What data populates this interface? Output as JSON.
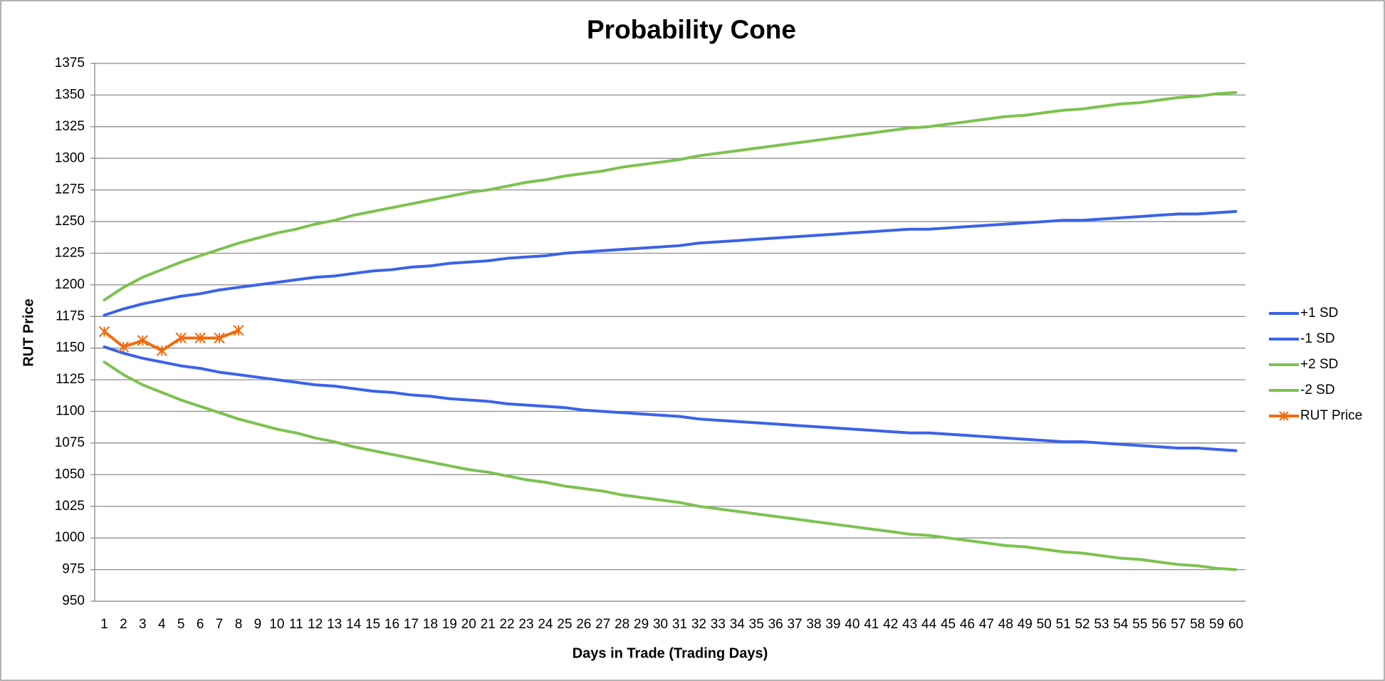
{
  "chart_data": {
    "type": "line",
    "title": "Probability Cone",
    "x_label": "Days in Trade (Trading Days)",
    "y_label": "RUT Price",
    "categories": [
      1,
      2,
      3,
      4,
      5,
      6,
      7,
      8,
      9,
      10,
      11,
      12,
      13,
      14,
      15,
      16,
      17,
      18,
      19,
      20,
      21,
      22,
      23,
      24,
      25,
      26,
      27,
      28,
      29,
      30,
      31,
      32,
      33,
      34,
      35,
      36,
      37,
      38,
      39,
      40,
      41,
      42,
      43,
      44,
      45,
      46,
      47,
      48,
      49,
      50,
      51,
      52,
      53,
      54,
      55,
      56,
      57,
      58,
      59,
      60
    ],
    "ylim": [
      950,
      1375
    ],
    "yticks": [
      950,
      975,
      1000,
      1025,
      1050,
      1075,
      1100,
      1125,
      1150,
      1175,
      1200,
      1225,
      1250,
      1275,
      1300,
      1325,
      1350,
      1375
    ],
    "grid": true,
    "legend": "right",
    "series": [
      {
        "name": "+1 SD",
        "color": "#3b63e8",
        "values": [
          1176,
          1181,
          1185,
          1188,
          1191,
          1193,
          1196,
          1198,
          1200,
          1202,
          1204,
          1206,
          1207,
          1209,
          1211,
          1212,
          1214,
          1215,
          1217,
          1218,
          1219,
          1221,
          1222,
          1223,
          1225,
          1226,
          1227,
          1228,
          1229,
          1230,
          1231,
          1233,
          1234,
          1235,
          1236,
          1237,
          1238,
          1239,
          1240,
          1241,
          1242,
          1243,
          1244,
          1244,
          1245,
          1246,
          1247,
          1248,
          1249,
          1250,
          1251,
          1251,
          1252,
          1253,
          1254,
          1255,
          1256,
          1256,
          1257,
          1258
        ]
      },
      {
        "name": "-1 SD",
        "color": "#3b63e8",
        "values": [
          1151,
          1146,
          1142,
          1139,
          1136,
          1134,
          1131,
          1129,
          1127,
          1125,
          1123,
          1121,
          1120,
          1118,
          1116,
          1115,
          1113,
          1112,
          1110,
          1109,
          1108,
          1106,
          1105,
          1104,
          1103,
          1101,
          1100,
          1099,
          1098,
          1097,
          1096,
          1094,
          1093,
          1092,
          1091,
          1090,
          1089,
          1088,
          1087,
          1086,
          1085,
          1084,
          1083,
          1083,
          1082,
          1081,
          1080,
          1079,
          1078,
          1077,
          1076,
          1076,
          1075,
          1074,
          1073,
          1072,
          1071,
          1071,
          1070,
          1069
        ]
      },
      {
        "name": "+2 SD",
        "color": "#7dc24f",
        "values": [
          1188,
          1198,
          1206,
          1212,
          1218,
          1223,
          1228,
          1233,
          1237,
          1241,
          1244,
          1248,
          1251,
          1255,
          1258,
          1261,
          1264,
          1267,
          1270,
          1273,
          1275,
          1278,
          1281,
          1283,
          1286,
          1288,
          1290,
          1293,
          1295,
          1297,
          1299,
          1302,
          1304,
          1306,
          1308,
          1310,
          1312,
          1314,
          1316,
          1318,
          1320,
          1322,
          1324,
          1325,
          1327,
          1329,
          1331,
          1333,
          1334,
          1336,
          1338,
          1339,
          1341,
          1343,
          1344,
          1346,
          1348,
          1349,
          1351,
          1352
        ]
      },
      {
        "name": "-2 SD",
        "color": "#7dc24f",
        "values": [
          1139,
          1129,
          1121,
          1115,
          1109,
          1104,
          1099,
          1094,
          1090,
          1086,
          1083,
          1079,
          1076,
          1072,
          1069,
          1066,
          1063,
          1060,
          1057,
          1054,
          1052,
          1049,
          1046,
          1044,
          1041,
          1039,
          1037,
          1034,
          1032,
          1030,
          1028,
          1025,
          1023,
          1021,
          1019,
          1017,
          1015,
          1013,
          1011,
          1009,
          1007,
          1005,
          1003,
          1002,
          1000,
          998,
          996,
          994,
          993,
          991,
          989,
          988,
          986,
          984,
          983,
          981,
          979,
          978,
          976,
          975
        ]
      },
      {
        "name": "RUT Price",
        "color": "#f26b0f",
        "marker": "asterisk",
        "values": [
          1163,
          1151,
          1156,
          1148,
          1158,
          1158,
          1158,
          1164,
          null,
          null,
          null,
          null,
          null,
          null,
          null,
          null,
          null,
          null,
          null,
          null,
          null,
          null,
          null,
          null,
          null,
          null,
          null,
          null,
          null,
          null,
          null,
          null,
          null,
          null,
          null,
          null,
          null,
          null,
          null,
          null,
          null,
          null,
          null,
          null,
          null,
          null,
          null,
          null,
          null,
          null,
          null,
          null,
          null,
          null,
          null,
          null,
          null,
          null,
          null,
          null
        ]
      }
    ]
  }
}
